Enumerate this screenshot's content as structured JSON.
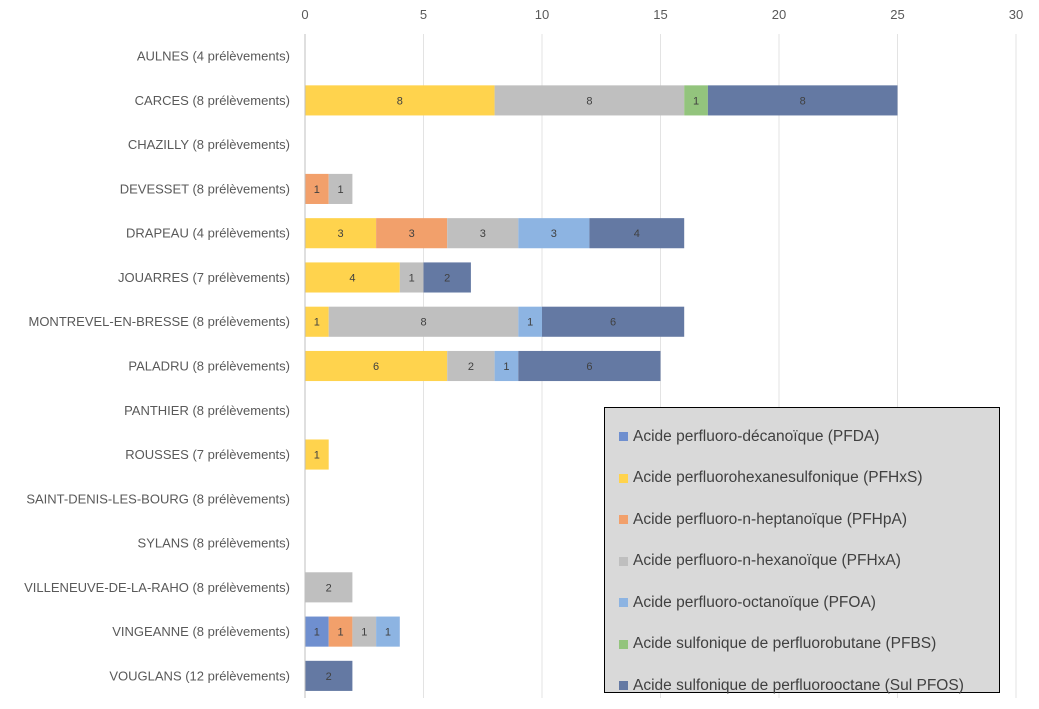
{
  "chart_data": {
    "type": "bar",
    "orientation": "horizontal",
    "stacked": true,
    "title": "",
    "xlabel": "",
    "ylabel": "",
    "xlim": [
      0,
      30
    ],
    "x_ticks": [
      0,
      5,
      10,
      15,
      20,
      25,
      30
    ],
    "x_axis_position": "top",
    "grid": true,
    "legend_position": "bottom-right",
    "categories": [
      "AULNES (4 prélèvements)",
      "CARCES (8 prélèvements)",
      "CHAZILLY (8 prélèvements)",
      "DEVESSET (8 prélèvements)",
      "DRAPEAU (4 prélèvements)",
      "JOUARRES (7 prélèvements)",
      "MONTREVEL-EN-BRESSE (8 prélèvements)",
      "PALADRU (8 prélèvements)",
      "PANTHIER (8 prélèvements)",
      "ROUSSES (7 prélèvements)",
      "SAINT-DENIS-LES-BOURG (8 prélèvements)",
      "SYLANS (8 prélèvements)",
      "VILLENEUVE-DE-LA-RAHO (8 prélèvements)",
      "VINGEANNE (8 prélèvements)",
      "VOUGLANS (12 prélèvements)"
    ],
    "series": [
      {
        "name": "Acide perfluoro-décanoïque (PFDA)",
        "color": "#6f8fcf",
        "values": [
          0,
          0,
          0,
          0,
          0,
          0,
          0,
          0,
          0,
          0,
          0,
          0,
          0,
          1,
          0
        ]
      },
      {
        "name": "Acide perfluorohexanesulfonique (PFHxS)",
        "color": "#ffd34d",
        "values": [
          0,
          8,
          0,
          0,
          3,
          4,
          1,
          6,
          0,
          1,
          0,
          0,
          0,
          0,
          0
        ]
      },
      {
        "name": "Acide perfluoro-n-heptanoïque (PFHpA)",
        "color": "#f2a06b",
        "values": [
          0,
          0,
          0,
          1,
          3,
          0,
          0,
          0,
          0,
          0,
          0,
          0,
          0,
          1,
          0
        ]
      },
      {
        "name": "Acide perfluoro-n-hexanoïque (PFHxA)",
        "color": "#bfbfbf",
        "values": [
          0,
          8,
          0,
          1,
          3,
          1,
          8,
          2,
          0,
          0,
          0,
          0,
          2,
          1,
          0
        ]
      },
      {
        "name": "Acide perfluoro-octanoïque (PFOA)",
        "color": "#8db4e2",
        "values": [
          0,
          0,
          0,
          0,
          3,
          0,
          1,
          1,
          0,
          0,
          0,
          0,
          0,
          1,
          0
        ]
      },
      {
        "name": "Acide sulfonique de perfluorobutane (PFBS)",
        "color": "#93c47d",
        "values": [
          0,
          1,
          0,
          0,
          0,
          0,
          0,
          0,
          0,
          0,
          0,
          0,
          0,
          0,
          0
        ]
      },
      {
        "name": "Acide sulfonique de perfluorooctane (Sul PFOS)",
        "color": "#6479a3",
        "values": [
          0,
          8,
          0,
          0,
          4,
          2,
          6,
          6,
          0,
          0,
          0,
          0,
          0,
          0,
          2
        ]
      }
    ]
  },
  "legend": {
    "items": [
      {
        "label": "Acide perfluoro-décanoïque (PFDA)",
        "color": "#6f8fcf"
      },
      {
        "label": "Acide perfluorohexanesulfonique (PFHxS)",
        "color": "#ffd34d"
      },
      {
        "label": "Acide perfluoro-n-heptanoïque (PFHpA)",
        "color": "#f2a06b"
      },
      {
        "label": "Acide perfluoro-n-hexanoïque (PFHxA)",
        "color": "#bfbfbf"
      },
      {
        "label": "Acide perfluoro-octanoïque (PFOA)",
        "color": "#8db4e2"
      },
      {
        "label": "Acide sulfonique de perfluorobutane (PFBS)",
        "color": "#93c47d"
      },
      {
        "label": "Acide sulfonique de perfluorooctane (Sul PFOS)",
        "color": "#6479a3"
      }
    ]
  }
}
